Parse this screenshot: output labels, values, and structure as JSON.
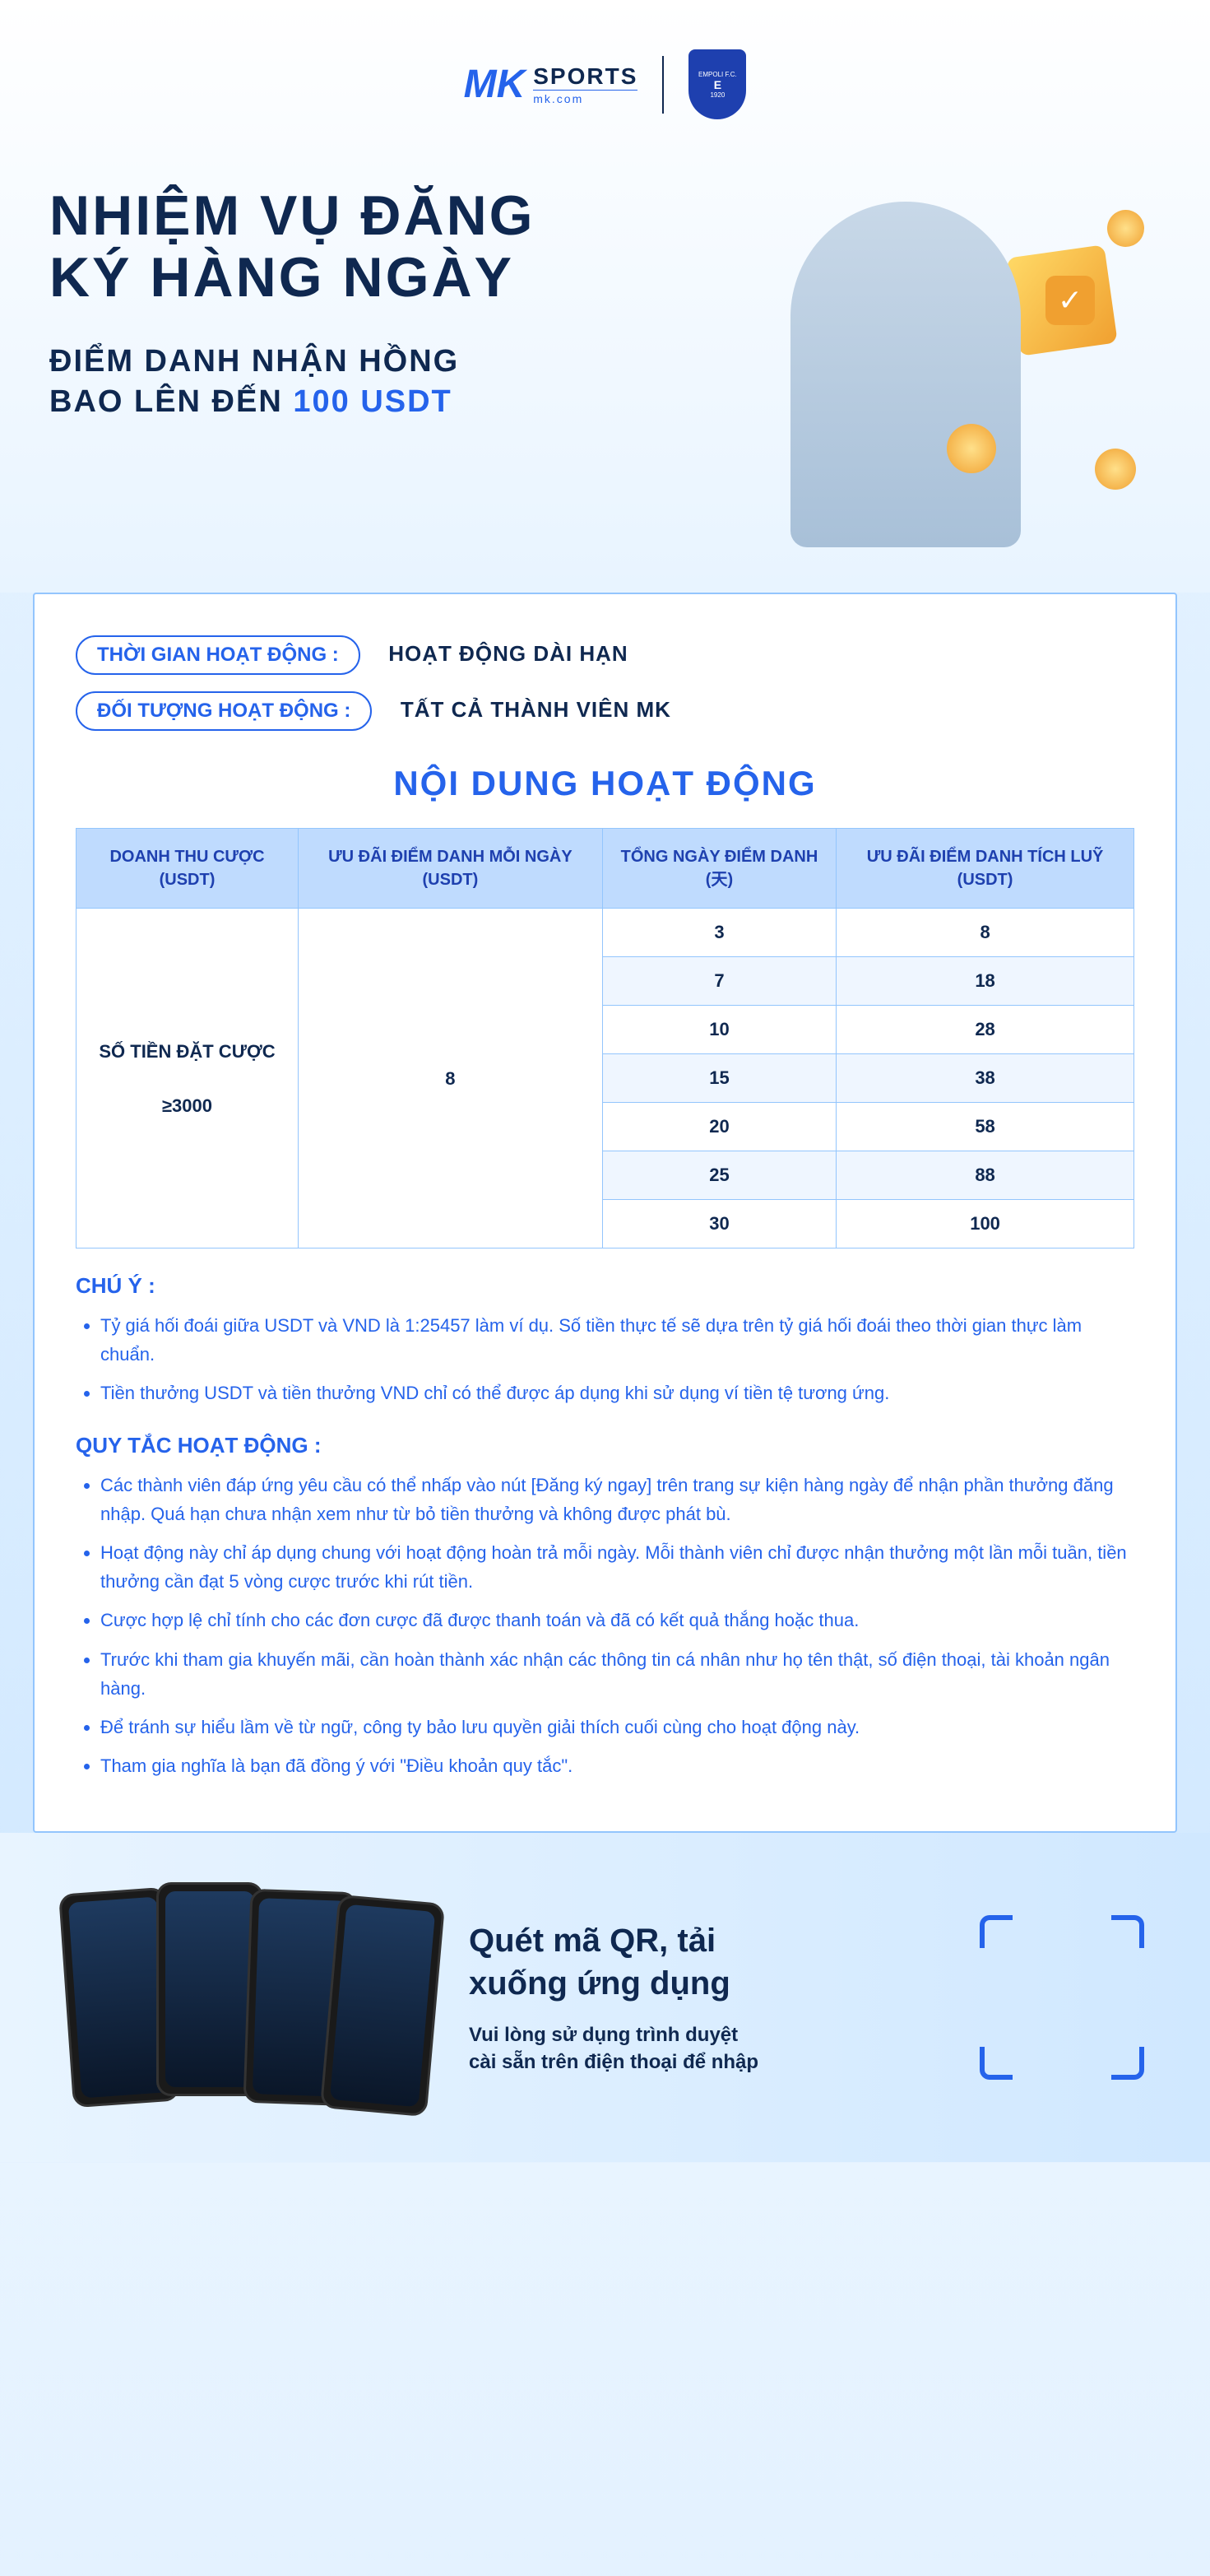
{
  "brand": {
    "logo_mark": "MK",
    "logo_text": "SPORTS",
    "logo_domain": "mk.com",
    "badge_top": "EMPOLI F.C.",
    "badge_mid": "E",
    "badge_year": "1920"
  },
  "hero": {
    "title_line1": "NHIỆM VỤ ĐĂNG",
    "title_line2": "KÝ HÀNG NGÀY",
    "subtitle_line1": "ĐIỂM DANH NHẬN HỒNG",
    "subtitle_line2_prefix": "BAO LÊN ĐẾN ",
    "subtitle_highlight": "100 USDT"
  },
  "info": {
    "time_label": "THỜI GIAN HOẠT ĐỘNG :",
    "time_value": "HOẠT ĐỘNG DÀI HẠN",
    "target_label": "ĐỐI TƯỢNG HOẠT ĐỘNG :",
    "target_value": "TẤT CẢ THÀNH VIÊN MK"
  },
  "section_title": "NỘI DUNG HOẠT ĐỘNG",
  "table": {
    "headers": [
      "DOANH THU CƯỢC (USDT)",
      "ƯU ĐÃI ĐIỂM DANH MỖI NGÀY (USDT)",
      "TỔNG NGÀY ĐIỂM DANH (天)",
      "ƯU ĐÃI ĐIỂM DANH TÍCH LUỸ (USDT)"
    ],
    "bet_amount_line1": "SỐ TIỀN ĐẶT CƯỢC",
    "bet_amount_line2": "≥3000",
    "daily_bonus": "8",
    "rows": [
      {
        "days": "3",
        "bonus": "8"
      },
      {
        "days": "7",
        "bonus": "18"
      },
      {
        "days": "10",
        "bonus": "28"
      },
      {
        "days": "15",
        "bonus": "38"
      },
      {
        "days": "20",
        "bonus": "58"
      },
      {
        "days": "25",
        "bonus": "88"
      },
      {
        "days": "30",
        "bonus": "100"
      }
    ],
    "header_bg": "#bfdbfe",
    "border_color": "#93c5fd",
    "row_alt_bg": "#eff6ff"
  },
  "notes": {
    "attention_heading": "CHÚ Ý :",
    "attention_items": [
      "Tỷ giá hối đoái giữa USDT và VND là 1:25457 làm ví dụ. Số tiền thực tế sẽ dựa trên tỷ giá hối đoái theo thời gian thực làm chuẩn.",
      "Tiền thưởng USDT và tiền thưởng VND chỉ có thể được áp dụng khi sử dụng ví tiền tệ tương ứng."
    ],
    "rules_heading": "QUY TẮC HOẠT ĐỘNG :",
    "rules_items": [
      "Các thành viên đáp ứng yêu cầu có thể nhấp vào nút [Đăng ký ngay] trên trang sự kiện hàng ngày để nhận phần thưởng đăng nhập. Quá hạn chưa nhận xem như từ bỏ tiền thưởng và không được phát bù.",
      "Hoạt động này chỉ áp dụng chung với hoạt động hoàn trả mỗi ngày. Mỗi thành viên chỉ được nhận thưởng một lần mỗi tuần, tiền thưởng cần đạt 5 vòng cược trước khi rút tiền.",
      "Cược hợp lệ chỉ tính cho các đơn cược đã được thanh toán và đã có kết quả thắng hoặc thua.",
      "Trước khi tham gia khuyến mãi, cần hoàn thành xác nhận các thông tin cá nhân như họ tên thật, số điện thoại, tài khoản ngân hàng.",
      "Để tránh sự hiểu lầm về từ ngữ, công ty bảo lưu quyền giải thích cuối cùng cho hoạt động này.",
      "Tham gia nghĩa là bạn đã đồng ý với \"Điều khoản quy tắc\"."
    ]
  },
  "footer": {
    "title_line1": "Quét mã QR, tải",
    "title_line2": "xuống ứng dụng",
    "subtitle_line1": "Vui lòng sử dụng trình duyệt",
    "subtitle_line2": "cài sẵn trên điện thoại để nhập"
  },
  "colors": {
    "primary_blue": "#2563eb",
    "dark_navy": "#0f2850",
    "light_blue_bg": "#e8f4ff",
    "border_blue": "#93c5fd",
    "gold": "#f0a030"
  }
}
